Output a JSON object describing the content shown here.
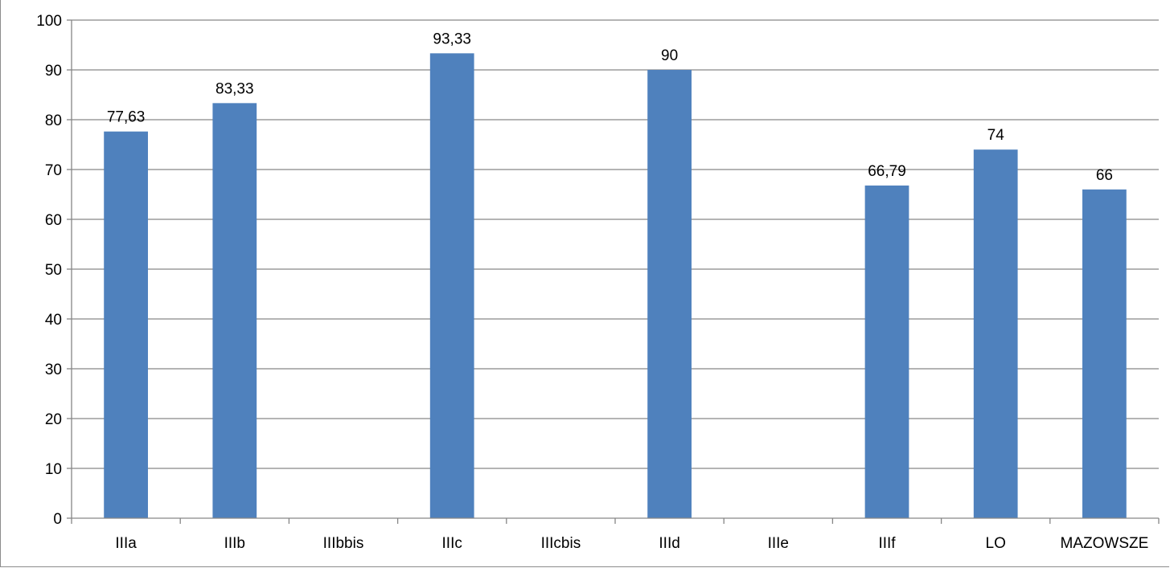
{
  "chart_data": {
    "type": "bar",
    "title": "",
    "xlabel": "",
    "ylabel": "",
    "categories": [
      "IIIa",
      "IIIb",
      "IIIbbis",
      "IIIc",
      "IIIcbis",
      "IIId",
      "IIIe",
      "IIIf",
      "LO",
      "MAZOWSZE"
    ],
    "values": [
      77.63,
      83.33,
      null,
      93.33,
      null,
      90,
      null,
      66.79,
      74,
      66
    ],
    "data_labels": [
      "77,63",
      "83,33",
      "",
      "93,33",
      "",
      "90",
      "",
      "66,79",
      "74",
      "66"
    ],
    "ylim": [
      0,
      100
    ],
    "yticks": [
      0,
      10,
      20,
      30,
      40,
      50,
      60,
      70,
      80,
      90,
      100
    ],
    "ytick_labels": [
      "0",
      "10",
      "20",
      "30",
      "40",
      "50",
      "60",
      "70",
      "80",
      "90",
      "100"
    ],
    "grid": true,
    "legend": "none",
    "colors": {
      "bar": "#4f81bd",
      "grid": "#868686",
      "axis": "#868686",
      "text": "#000000"
    }
  }
}
